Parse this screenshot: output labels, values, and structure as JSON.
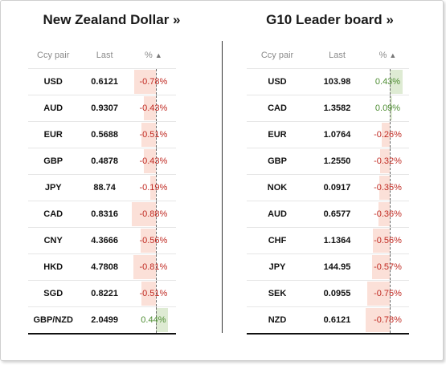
{
  "left": {
    "title": "New Zealand Dollar »",
    "headers": {
      "pair": "Ccy pair",
      "last": "Last",
      "pct": "%",
      "sort_icon": "▲"
    },
    "rows": [
      {
        "pair": "USD",
        "last": "0.6121",
        "pct": -0.78,
        "pct_text": "-0.78%"
      },
      {
        "pair": "AUD",
        "last": "0.9307",
        "pct": -0.43,
        "pct_text": "-0.43%"
      },
      {
        "pair": "EUR",
        "last": "0.5688",
        "pct": -0.51,
        "pct_text": "-0.51%"
      },
      {
        "pair": "GBP",
        "last": "0.4878",
        "pct": -0.43,
        "pct_text": "-0.43%"
      },
      {
        "pair": "JPY",
        "last": "88.74",
        "pct": -0.19,
        "pct_text": "-0.19%"
      },
      {
        "pair": "CAD",
        "last": "0.8316",
        "pct": -0.88,
        "pct_text": "-0.88%"
      },
      {
        "pair": "CNY",
        "last": "4.3666",
        "pct": -0.56,
        "pct_text": "-0.56%"
      },
      {
        "pair": "HKD",
        "last": "4.7808",
        "pct": -0.81,
        "pct_text": "-0.81%"
      },
      {
        "pair": "SGD",
        "last": "0.8221",
        "pct": -0.51,
        "pct_text": "-0.51%"
      },
      {
        "pair": "GBP/NZD",
        "last": "2.0499",
        "pct": 0.44,
        "pct_text": "0.44%"
      }
    ]
  },
  "right": {
    "title": "G10 Leader board »",
    "headers": {
      "pair": "Ccy pair",
      "last": "Last",
      "pct": "%",
      "sort_icon": "▲"
    },
    "rows": [
      {
        "pair": "USD",
        "last": "103.98",
        "pct": 0.43,
        "pct_text": "0.43%"
      },
      {
        "pair": "CAD",
        "last": "1.3582",
        "pct": 0.09,
        "pct_text": "0.09%"
      },
      {
        "pair": "EUR",
        "last": "1.0764",
        "pct": -0.26,
        "pct_text": "-0.26%"
      },
      {
        "pair": "GBP",
        "last": "1.2550",
        "pct": -0.32,
        "pct_text": "-0.32%"
      },
      {
        "pair": "NOK",
        "last": "0.0917",
        "pct": -0.35,
        "pct_text": "-0.35%"
      },
      {
        "pair": "AUD",
        "last": "0.6577",
        "pct": -0.36,
        "pct_text": "-0.36%"
      },
      {
        "pair": "CHF",
        "last": "1.1364",
        "pct": -0.56,
        "pct_text": "-0.56%"
      },
      {
        "pair": "JPY",
        "last": "144.95",
        "pct": -0.57,
        "pct_text": "-0.57%"
      },
      {
        "pair": "SEK",
        "last": "0.0955",
        "pct": -0.75,
        "pct_text": "-0.75%"
      },
      {
        "pair": "NZD",
        "last": "0.6121",
        "pct": -0.78,
        "pct_text": "-0.78%"
      }
    ]
  },
  "colors": {
    "negative_text": "#c02a22",
    "negative_bar": "#fbe0d8",
    "positive_text": "#4e8d33",
    "positive_bar": "#deebd3"
  }
}
